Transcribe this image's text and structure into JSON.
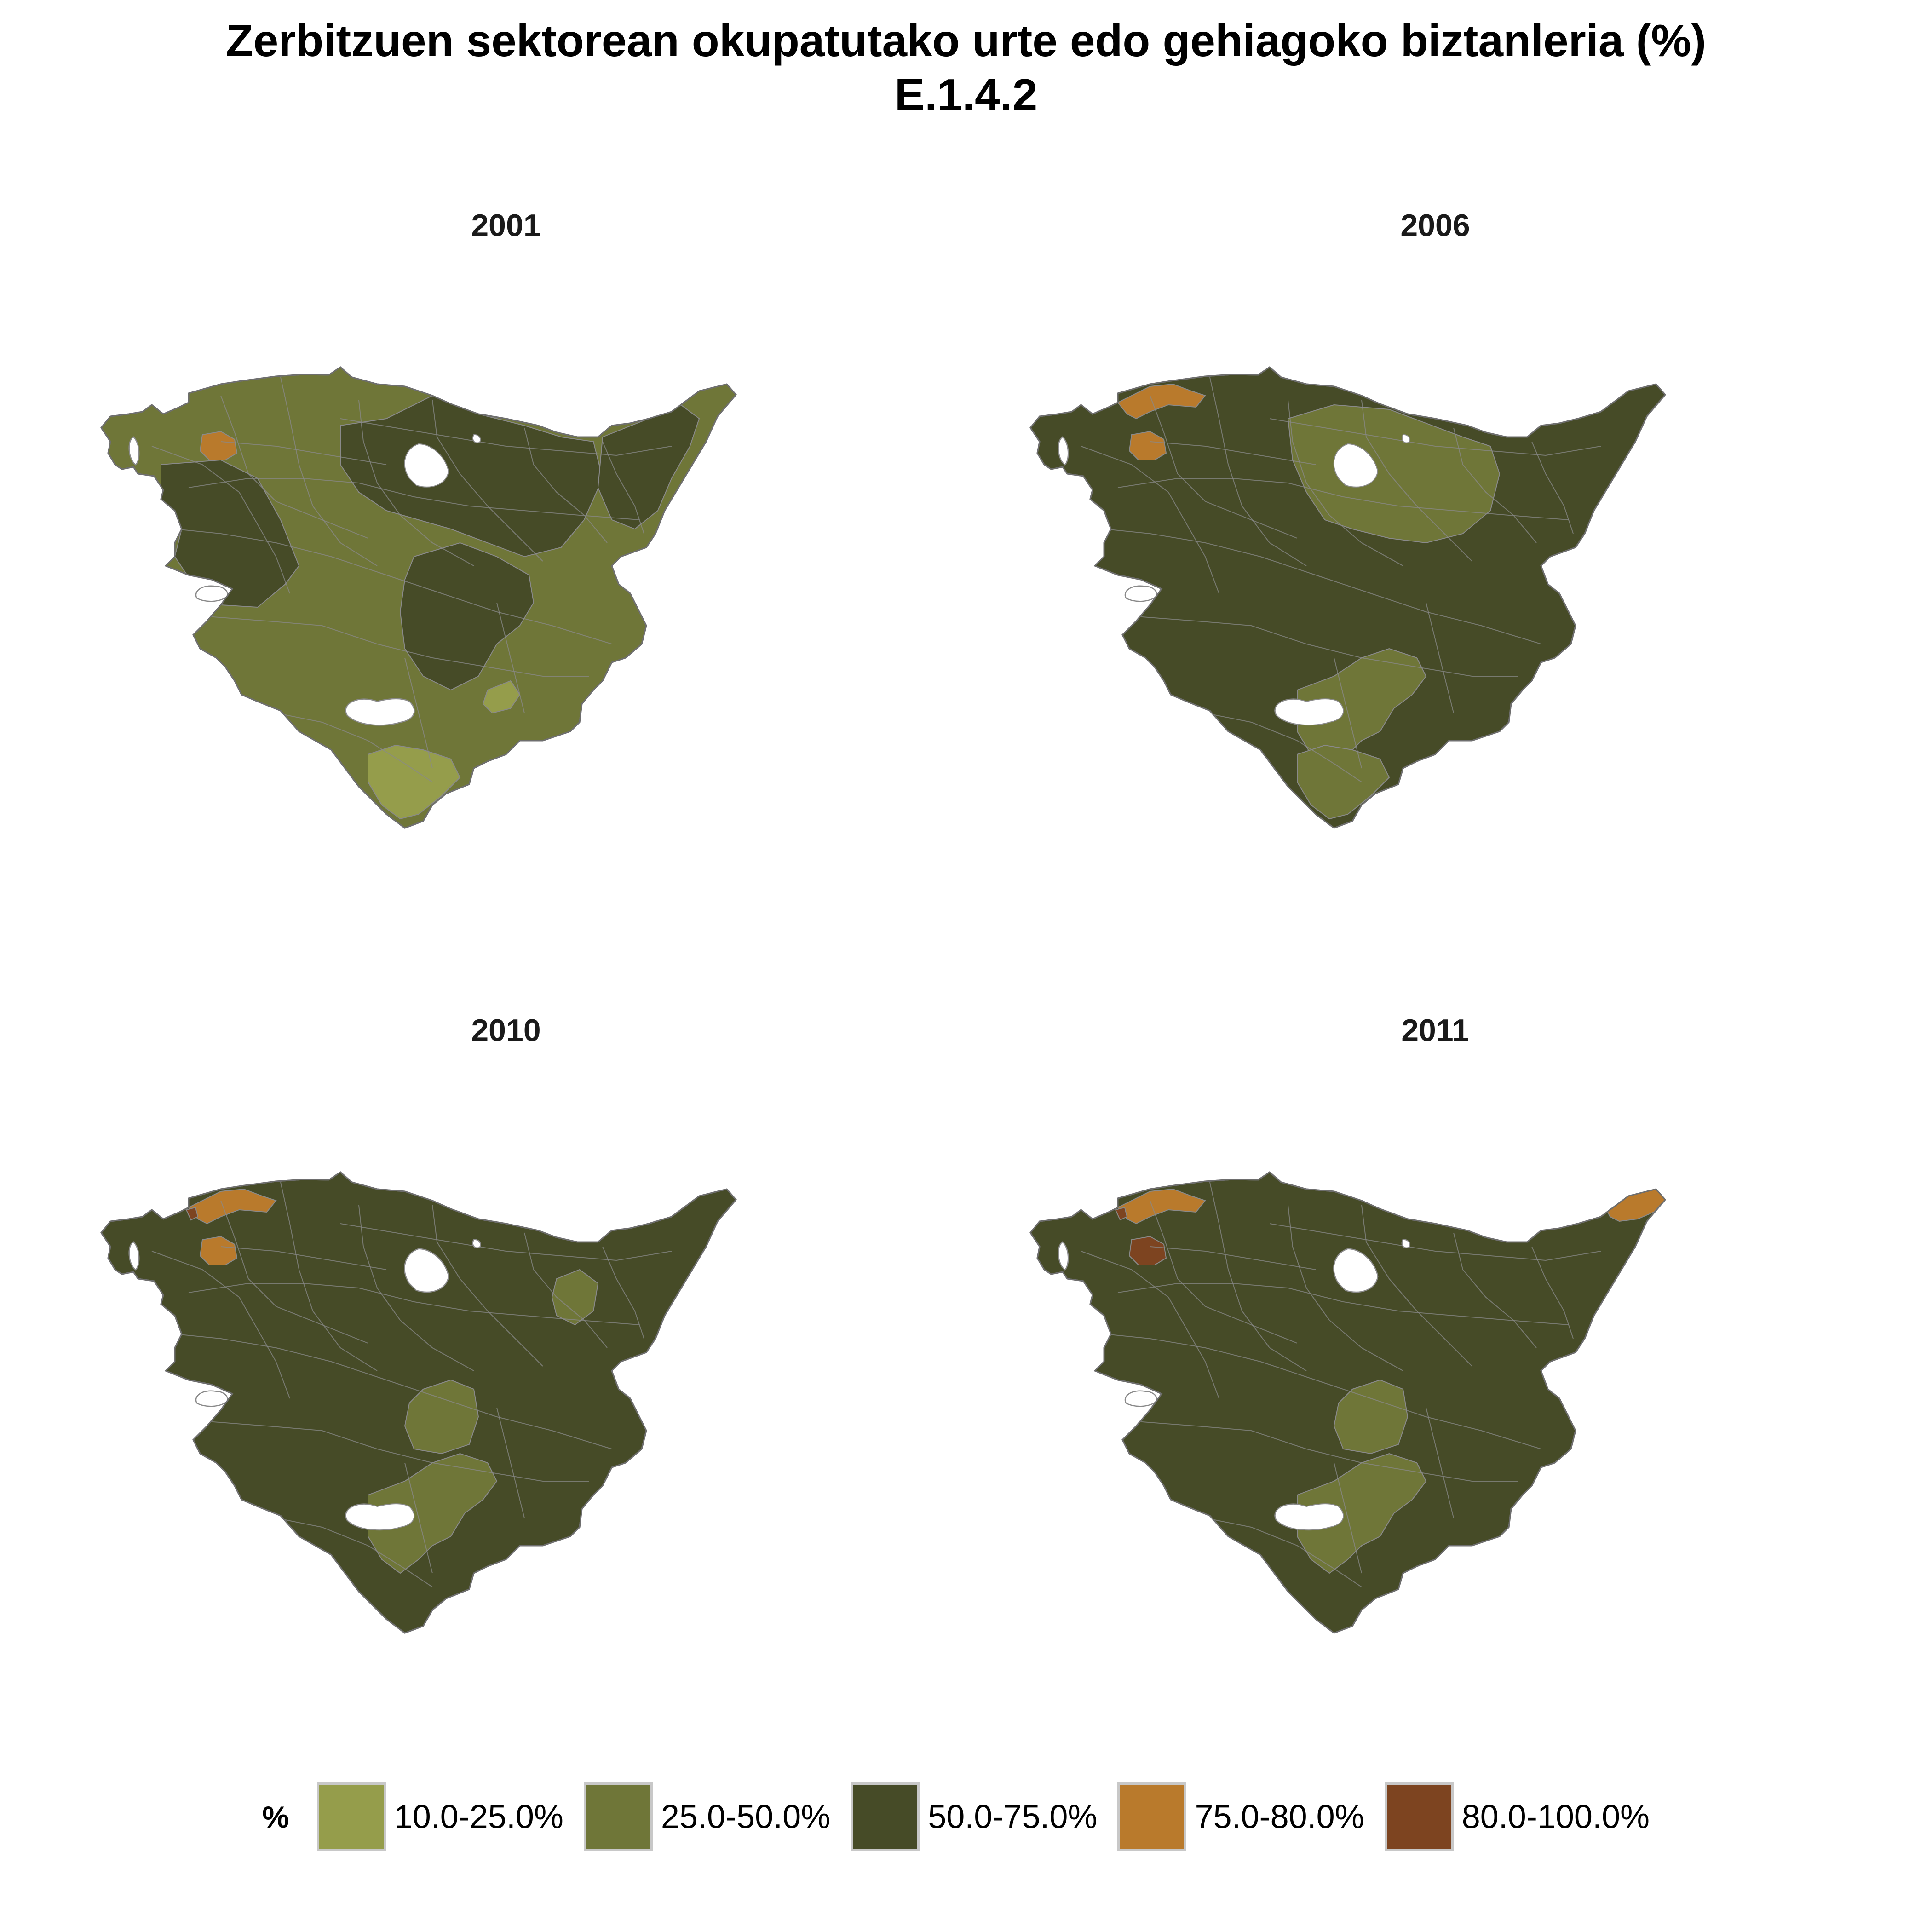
{
  "title": {
    "line1": "Zerbitzuen sektorean okupatutako urte edo gehiagoko biztanleria (%)",
    "line2": "E.1.4.2"
  },
  "legend": {
    "title": "%",
    "classes": [
      {
        "label": "10.0-25.0%",
        "color": "#959d4b"
      },
      {
        "label": "25.0-50.0%",
        "color": "#6f7638"
      },
      {
        "label": "50.0-75.0%",
        "color": "#464b27"
      },
      {
        "label": "75.0-80.0%",
        "color": "#b97a2c"
      },
      {
        "label": "80.0-100.0%",
        "color": "#7d4420"
      }
    ]
  },
  "border_color": "#8a8a8a",
  "panels": [
    {
      "year": "2001",
      "base_class": 1,
      "regions": [
        {
          "zone": "west-interior",
          "class": 2
        },
        {
          "zone": "center-north",
          "class": 2
        },
        {
          "zone": "center-south",
          "class": 2
        },
        {
          "zone": "east-coast",
          "class": 2
        },
        {
          "zone": "bilbao-core",
          "class": 3
        },
        {
          "zone": "south-east-patch",
          "class": 0
        },
        {
          "zone": "south-tip",
          "class": 0
        }
      ]
    },
    {
      "year": "2006",
      "base_class": 2,
      "regions": [
        {
          "zone": "center-east",
          "class": 1
        },
        {
          "zone": "south-center",
          "class": 1
        },
        {
          "zone": "south-tip",
          "class": 1
        },
        {
          "zone": "north-coast-west",
          "class": 3
        },
        {
          "zone": "bilbao-core",
          "class": 3
        }
      ]
    },
    {
      "year": "2010",
      "base_class": 2,
      "regions": [
        {
          "zone": "center-patch",
          "class": 1
        },
        {
          "zone": "east-patch",
          "class": 1
        },
        {
          "zone": "south-center",
          "class": 1
        },
        {
          "zone": "north-coast-west",
          "class": 3
        },
        {
          "zone": "bilbao-core",
          "class": 3
        },
        {
          "zone": "coast-dot",
          "class": 4
        }
      ]
    },
    {
      "year": "2011",
      "base_class": 2,
      "regions": [
        {
          "zone": "center-patch",
          "class": 1
        },
        {
          "zone": "south-center",
          "class": 1
        },
        {
          "zone": "north-coast-west",
          "class": 3
        },
        {
          "zone": "east-tip",
          "class": 3
        },
        {
          "zone": "bilbao-core",
          "class": 4
        },
        {
          "zone": "coast-dot",
          "class": 4
        }
      ]
    }
  ]
}
